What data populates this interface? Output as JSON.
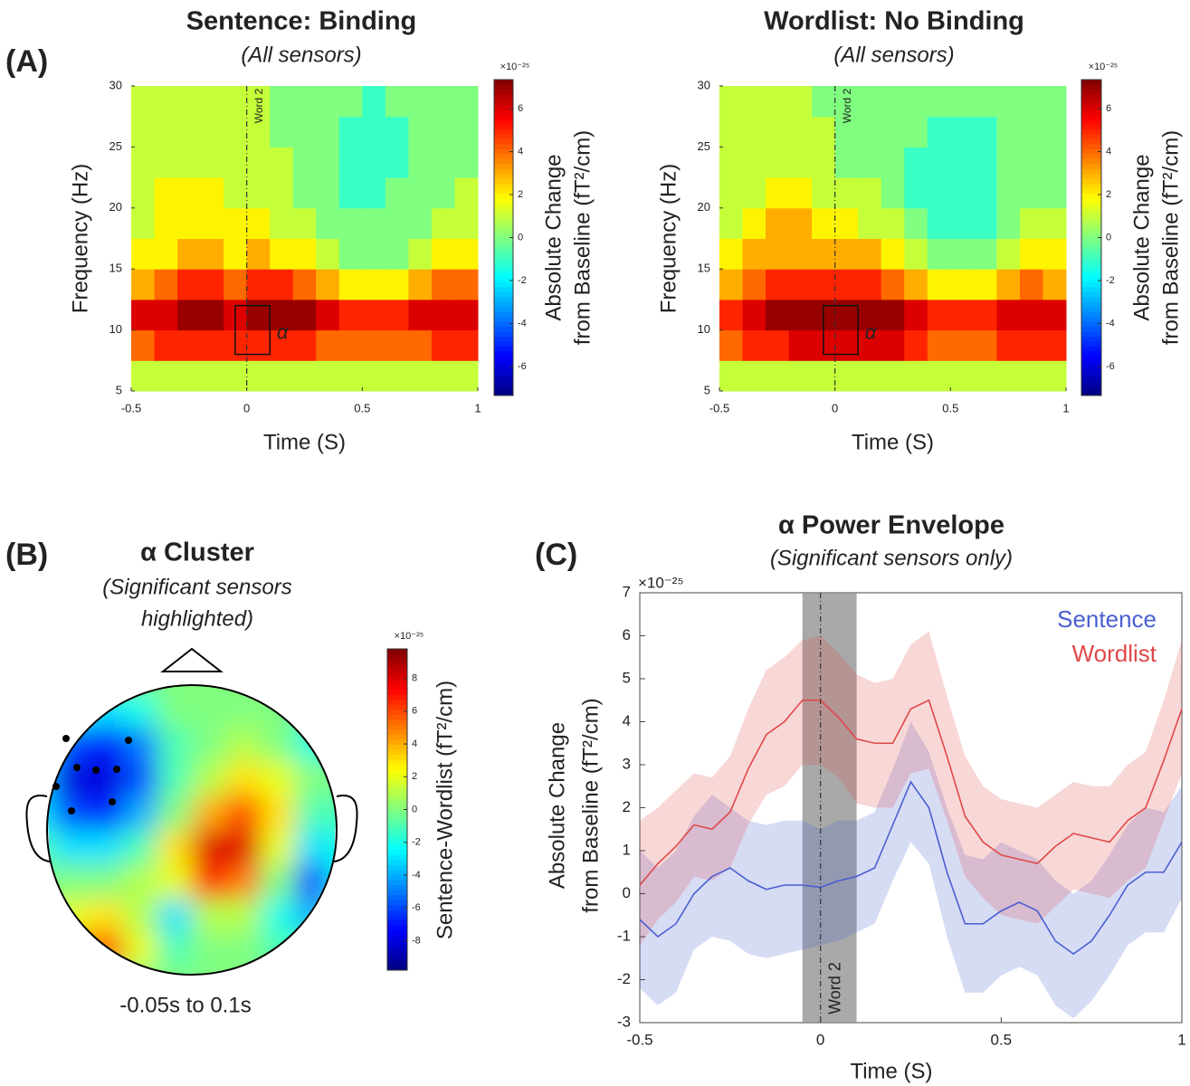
{
  "chart_data": [
    {
      "type": "heatmap",
      "panel_label": "(A)",
      "title": "Sentence: Binding",
      "subtitle": "(All sensors)",
      "xlabel": "Time (S)",
      "ylabel": "Frequency (Hz)",
      "x": [
        -0.45,
        -0.35,
        -0.25,
        -0.15,
        -0.05,
        0.05,
        0.15,
        0.25,
        0.35,
        0.45,
        0.55,
        0.65,
        0.75,
        0.85,
        0.95
      ],
      "y": [
        6.25,
        8.75,
        11.25,
        13.75,
        16.25,
        18.75,
        21.25,
        23.75,
        26.25,
        28.75
      ],
      "values": [
        [
          1,
          1,
          1,
          1,
          1,
          1,
          1,
          1,
          1,
          1,
          1,
          1,
          1,
          1,
          1
        ],
        [
          4,
          5,
          5,
          5,
          5,
          5,
          5,
          5,
          4,
          4,
          4,
          4,
          4,
          5,
          5
        ],
        [
          6,
          6,
          7,
          7,
          6,
          7,
          7,
          7,
          6,
          5,
          5,
          5,
          6,
          6,
          6
        ],
        [
          3,
          4,
          5,
          5,
          4,
          5,
          5,
          4,
          3,
          2,
          2,
          2,
          3,
          4,
          4
        ],
        [
          2,
          2,
          3,
          3,
          2,
          3,
          2,
          2,
          1,
          0,
          0,
          0,
          1,
          2,
          2
        ],
        [
          1,
          2,
          2,
          2,
          2,
          2,
          1,
          1,
          0,
          0,
          0,
          0,
          0,
          1,
          1
        ],
        [
          1,
          2,
          2,
          2,
          1,
          1,
          1,
          0,
          0,
          -1,
          -1,
          0,
          0,
          0,
          1
        ],
        [
          1,
          1,
          1,
          1,
          1,
          1,
          1,
          0,
          0,
          -1,
          -1,
          -1,
          0,
          0,
          0
        ],
        [
          1,
          1,
          1,
          1,
          1,
          1,
          0,
          0,
          0,
          -1,
          -1,
          -1,
          0,
          0,
          0
        ],
        [
          1,
          1,
          1,
          1,
          1,
          1,
          0,
          0,
          0,
          0,
          -1,
          0,
          0,
          0,
          0
        ]
      ],
      "xlim": [
        -0.5,
        1
      ],
      "ylim": [
        5,
        30
      ],
      "xticks": [
        -0.5,
        0,
        0.5,
        1
      ],
      "yticks": [
        5,
        10,
        15,
        20,
        25,
        30
      ],
      "vline": {
        "x": 0,
        "label": "Word 2"
      },
      "box": {
        "xlim": [
          -0.05,
          0.1
        ],
        "ylim": [
          8,
          12
        ],
        "label": "α"
      },
      "colormap": "jet",
      "clim": [
        -7.35,
        7.35
      ],
      "cticks": [
        -6,
        -4,
        -2,
        0,
        2,
        4,
        6
      ],
      "cexponent": "×10⁻²⁵",
      "clabel": [
        "Absolute Change",
        "from Baseline (fT²/cm)"
      ]
    },
    {
      "type": "heatmap",
      "title": "Wordlist: No Binding",
      "subtitle": "(All sensors)",
      "xlabel": "Time (S)",
      "ylabel": "Frequency (Hz)",
      "x": [
        -0.45,
        -0.35,
        -0.25,
        -0.15,
        -0.05,
        0.05,
        0.15,
        0.25,
        0.35,
        0.45,
        0.55,
        0.65,
        0.75,
        0.85,
        0.95
      ],
      "y": [
        6.25,
        8.75,
        11.25,
        13.75,
        16.25,
        18.75,
        21.25,
        23.75,
        26.25,
        28.75
      ],
      "values": [
        [
          1,
          1,
          1,
          1,
          1,
          1,
          1,
          1,
          1,
          1,
          1,
          1,
          1,
          1,
          1
        ],
        [
          4,
          5,
          5,
          6,
          6,
          6,
          6,
          6,
          5,
          4,
          4,
          4,
          5,
          5,
          5
        ],
        [
          5,
          6,
          7,
          7,
          7,
          7,
          7,
          7,
          6,
          5,
          5,
          5,
          6,
          6,
          6
        ],
        [
          3,
          4,
          5,
          5,
          5,
          5,
          5,
          4,
          3,
          2,
          2,
          2,
          3,
          4,
          3
        ],
        [
          2,
          3,
          3,
          3,
          3,
          3,
          3,
          2,
          1,
          0,
          0,
          0,
          1,
          2,
          2
        ],
        [
          1,
          2,
          3,
          3,
          2,
          2,
          1,
          1,
          0,
          -1,
          -1,
          -1,
          0,
          1,
          1
        ],
        [
          1,
          1,
          2,
          2,
          1,
          1,
          1,
          0,
          -1,
          -1,
          -1,
          -1,
          0,
          0,
          0
        ],
        [
          1,
          1,
          1,
          1,
          1,
          0,
          0,
          0,
          -1,
          -1,
          -1,
          -1,
          0,
          0,
          0
        ],
        [
          1,
          1,
          1,
          1,
          1,
          0,
          0,
          0,
          0,
          -1,
          -1,
          -1,
          0,
          0,
          0
        ],
        [
          1,
          1,
          1,
          1,
          0,
          0,
          0,
          0,
          0,
          0,
          0,
          0,
          0,
          0,
          0
        ]
      ],
      "xlim": [
        -0.5,
        1
      ],
      "ylim": [
        5,
        30
      ],
      "xticks": [
        -0.5,
        0,
        0.5,
        1
      ],
      "yticks": [
        5,
        10,
        15,
        20,
        25,
        30
      ],
      "vline": {
        "x": 0,
        "label": "Word 2"
      },
      "box": {
        "xlim": [
          -0.05,
          0.1
        ],
        "ylim": [
          8,
          12
        ],
        "label": "α"
      },
      "colormap": "jet",
      "clim": [
        -7.35,
        7.35
      ],
      "cticks": [
        -6,
        -4,
        -2,
        0,
        2,
        4,
        6
      ],
      "cexponent": "×10⁻²⁵",
      "clabel": [
        "Absolute Change",
        "from Baseline (fT²/cm)"
      ]
    },
    {
      "type": "topomap",
      "panel_label": "(B)",
      "title": "α Cluster",
      "subtitle": [
        "(Significant sensors",
        "highlighted)"
      ],
      "caption": "-0.05s to 0.1s",
      "values": [
        [
          0,
          0,
          0,
          0,
          0,
          0,
          0,
          0,
          0,
          0
        ],
        [
          0,
          -2,
          -3,
          -2,
          0,
          0,
          0,
          0,
          -1,
          0
        ],
        [
          -3,
          -6,
          -7,
          -5,
          -1,
          0,
          1,
          0,
          -2,
          -1
        ],
        [
          -4,
          -8,
          -8,
          -6,
          -1,
          1,
          3,
          2,
          0,
          0
        ],
        [
          -3,
          -6,
          -7,
          -4,
          0,
          4,
          6,
          3,
          -1,
          -1
        ],
        [
          -1,
          -3,
          -3,
          -1,
          3,
          8,
          8,
          2,
          -3,
          -2
        ],
        [
          0,
          0,
          0,
          1,
          2,
          7,
          5,
          0,
          -6,
          -2
        ],
        [
          0,
          2,
          3,
          1,
          -3,
          1,
          1,
          -2,
          -4,
          0
        ],
        [
          0,
          5,
          6,
          2,
          -1,
          0,
          0,
          -1,
          -1,
          0
        ],
        [
          0,
          0,
          1,
          0,
          0,
          0,
          0,
          0,
          0,
          0
        ]
      ],
      "colormap": "jet",
      "clim": [
        -9.8,
        9.8
      ],
      "cticks": [
        -8,
        -6,
        -4,
        -2,
        0,
        2,
        4,
        6,
        8
      ],
      "cexponent": "×10⁻²⁵",
      "clabel": "Sentence-Wordlist (fT²/cm)"
    },
    {
      "type": "line",
      "panel_label": "(C)",
      "title": "α Power Envelope",
      "subtitle": "(Significant sensors only)",
      "xlabel": "Time (S)",
      "ylabel": [
        "Absolute Change",
        "from Baseline (fT²/cm)"
      ],
      "yexponent": "×10⁻²⁵",
      "x": [
        -0.5,
        -0.45,
        -0.4,
        -0.35,
        -0.3,
        -0.25,
        -0.2,
        -0.15,
        -0.1,
        -0.05,
        0,
        0.05,
        0.1,
        0.15,
        0.2,
        0.25,
        0.3,
        0.35,
        0.4,
        0.45,
        0.5,
        0.55,
        0.6,
        0.65,
        0.7,
        0.75,
        0.8,
        0.85,
        0.9,
        0.95,
        1
      ],
      "series": [
        {
          "name": "Sentence",
          "color": "#4a5fd0",
          "values": [
            -0.6,
            -1.0,
            -0.7,
            0.0,
            0.4,
            0.6,
            0.3,
            0.1,
            0.2,
            0.2,
            0.15,
            0.3,
            0.4,
            0.6,
            1.6,
            2.6,
            2.0,
            0.5,
            -0.7,
            -0.7,
            -0.4,
            -0.2,
            -0.4,
            -1.1,
            -1.4,
            -1.1,
            -0.5,
            0.2,
            0.5,
            0.5,
            1.2
          ],
          "upper": [
            1.0,
            0.6,
            1.0,
            1.8,
            2.3,
            2.0,
            1.7,
            1.6,
            1.7,
            1.7,
            1.5,
            1.7,
            1.7,
            1.9,
            2.9,
            4.0,
            3.3,
            2.0,
            0.9,
            0.8,
            1.2,
            1.0,
            0.8,
            0.3,
            0.0,
            0.3,
            0.9,
            1.6,
            2.0,
            1.9,
            2.5
          ],
          "lower": [
            -2.2,
            -2.6,
            -2.3,
            -1.3,
            -1.0,
            -1.1,
            -1.4,
            -1.5,
            -1.4,
            -1.3,
            -1.2,
            -1.1,
            -0.9,
            -0.7,
            0.3,
            1.2,
            0.7,
            -1.0,
            -2.3,
            -2.3,
            -1.9,
            -1.7,
            -1.9,
            -2.6,
            -2.9,
            -2.5,
            -1.9,
            -1.2,
            -0.9,
            -0.9,
            -0.1
          ]
        },
        {
          "name": "Wordlist",
          "color": "#e04848",
          "values": [
            0.2,
            0.7,
            1.1,
            1.6,
            1.5,
            1.9,
            2.9,
            3.7,
            4.0,
            4.5,
            4.5,
            4.1,
            3.6,
            3.5,
            3.5,
            4.3,
            4.5,
            3.2,
            1.8,
            1.2,
            0.9,
            0.8,
            0.7,
            1.1,
            1.4,
            1.3,
            1.2,
            1.7,
            2.0,
            3.1,
            4.3
          ],
          "upper": [
            1.7,
            2.0,
            2.4,
            2.8,
            2.7,
            3.2,
            4.3,
            5.2,
            5.5,
            5.9,
            6.0,
            5.6,
            5.1,
            4.9,
            5.0,
            5.8,
            6.1,
            4.6,
            3.2,
            2.5,
            2.2,
            2.1,
            2.0,
            2.3,
            2.6,
            2.5,
            2.5,
            3.0,
            3.3,
            4.5,
            5.9
          ],
          "lower": [
            -1.2,
            -0.6,
            -0.2,
            0.4,
            0.3,
            0.6,
            1.6,
            2.3,
            2.5,
            3.0,
            3.0,
            2.7,
            2.1,
            2.0,
            2.0,
            2.8,
            2.9,
            1.7,
            0.4,
            -0.1,
            -0.5,
            -0.6,
            -0.7,
            -0.3,
            0.1,
            0.0,
            -0.1,
            0.3,
            0.6,
            1.7,
            2.8
          ]
        }
      ],
      "xlim": [
        -0.5,
        1
      ],
      "ylim": [
        -3,
        7
      ],
      "xticks": [
        -0.5,
        0,
        0.5,
        1
      ],
      "yticks": [
        -3,
        -2,
        -1,
        0,
        1,
        2,
        3,
        4,
        5,
        6,
        7
      ],
      "highlight": [
        -0.05,
        0.1
      ],
      "vline": {
        "x": 0,
        "label": "Word 2"
      },
      "legend": "top-right"
    }
  ]
}
